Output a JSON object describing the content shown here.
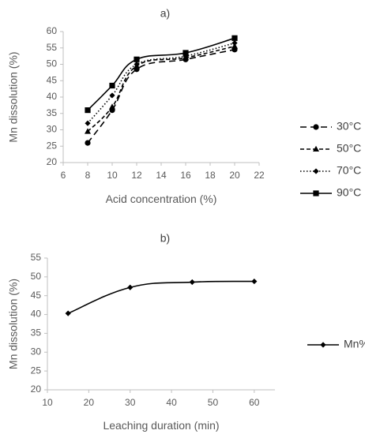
{
  "chart_data": [
    {
      "type": "line",
      "title": "a)",
      "xlabel": "Acid concentration (%)",
      "ylabel": "Mn dissolution (%)",
      "xlim": [
        6,
        22
      ],
      "ylim": [
        20,
        60
      ],
      "xticks": [
        6,
        8,
        10,
        12,
        14,
        16,
        18,
        20,
        22
      ],
      "yticks": [
        20,
        25,
        30,
        35,
        40,
        45,
        50,
        55,
        60
      ],
      "grid": false,
      "legend": "right",
      "x": [
        8,
        10,
        12,
        16,
        20
      ],
      "series": [
        {
          "name": "30°C",
          "values": [
            26,
            36,
            48.5,
            51.5,
            54.5
          ],
          "marker": "circle",
          "dash": "8,5",
          "color": "#000000"
        },
        {
          "name": "50°C",
          "values": [
            29.5,
            37,
            49.5,
            52,
            55.5
          ],
          "marker": "triangle",
          "dash": "5,3",
          "color": "#000000"
        },
        {
          "name": "70°C",
          "values": [
            32,
            40.5,
            50,
            52.5,
            56.5
          ],
          "marker": "diamond",
          "dash": "1.5,2.5",
          "color": "#000000"
        },
        {
          "name": "90°C",
          "values": [
            36,
            43.5,
            51.5,
            53.5,
            58
          ],
          "marker": "square",
          "dash": "",
          "color": "#000000"
        }
      ]
    },
    {
      "type": "line",
      "title": "b)",
      "xlabel": "Leaching duration (min)",
      "ylabel": "Mn dissolution (%)",
      "xlim": [
        10,
        65
      ],
      "ylim": [
        20,
        55
      ],
      "xticks": [
        10,
        20,
        30,
        40,
        50,
        60
      ],
      "yticks": [
        20,
        25,
        30,
        35,
        40,
        45,
        50,
        55
      ],
      "grid": false,
      "legend": "right",
      "x": [
        15,
        30,
        45,
        60
      ],
      "series": [
        {
          "name": "Mn%",
          "values": [
            40.3,
            47.2,
            48.6,
            48.8
          ],
          "marker": "diamond",
          "dash": "",
          "color": "#000000"
        }
      ]
    }
  ]
}
